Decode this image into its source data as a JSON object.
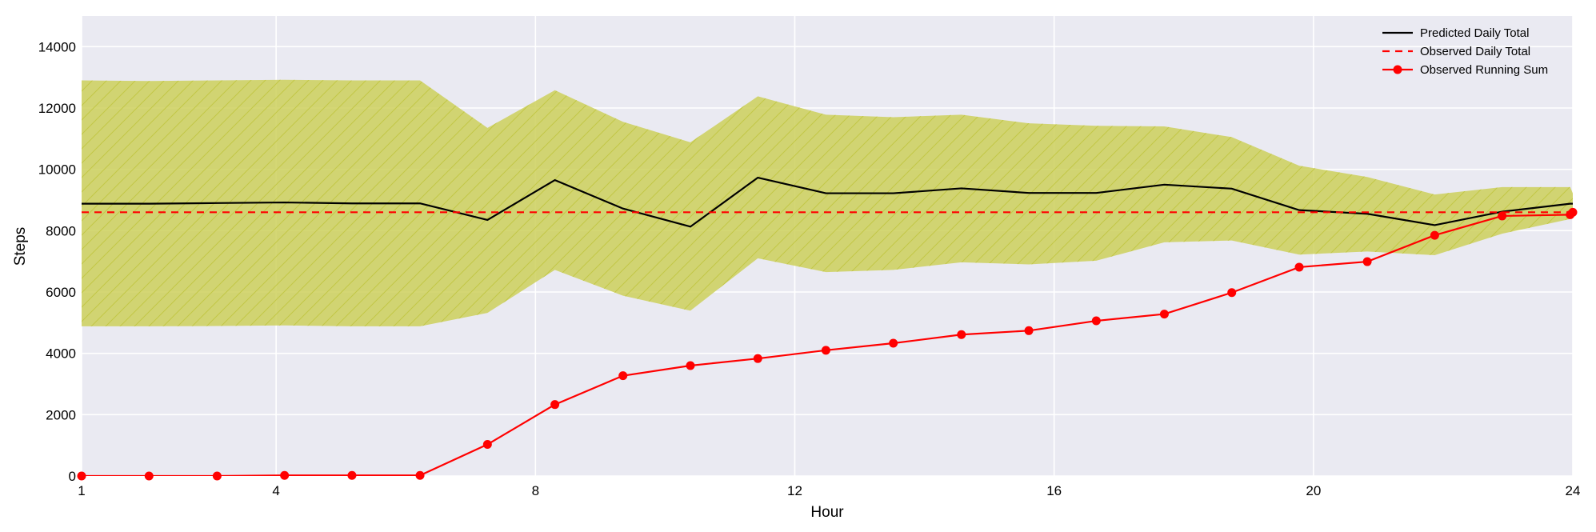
{
  "chart_data": {
    "type": "line",
    "xlabel": "Hour",
    "ylabel": "Steps",
    "xlim": [
      1,
      24
    ],
    "ylim": [
      0,
      15000
    ],
    "xticks": [
      1,
      4,
      8,
      12,
      16,
      20,
      24
    ],
    "yticks": [
      0,
      2000,
      4000,
      6000,
      8000,
      10000,
      12000,
      14000
    ],
    "grid": true,
    "legend_position": "top-right",
    "colors": {
      "background": "#eaeaf2",
      "grid": "#ffffff",
      "predicted": "#000000",
      "observed": "#ff0000",
      "band_fill": "#cdd05c",
      "band_hatch": "#c2c746"
    },
    "x": [
      1,
      2.04,
      3.09,
      4.13,
      5.17,
      6.22,
      7.26,
      8.3,
      9.35,
      10.39,
      11.43,
      12.48,
      13.52,
      14.57,
      15.61,
      16.65,
      17.7,
      18.74,
      19.78,
      20.83,
      21.87,
      22.91,
      23.96,
      24
    ],
    "band": {
      "upper": [
        12900,
        12880,
        12900,
        12920,
        12900,
        12900,
        11350,
        12580,
        11550,
        10880,
        12380,
        11780,
        11700,
        11780,
        11500,
        11420,
        11400,
        11050,
        10120,
        9750,
        9180,
        9420,
        9420,
        9220
      ],
      "lower": [
        4880,
        4880,
        4890,
        4910,
        4880,
        4880,
        5320,
        6720,
        5880,
        5390,
        7100,
        6650,
        6720,
        6970,
        6900,
        7020,
        7620,
        7680,
        7220,
        7320,
        7200,
        7900,
        8380,
        8420
      ]
    },
    "series": [
      {
        "name": "Predicted Daily Total",
        "style": "solid",
        "values": [
          8880,
          8880,
          8900,
          8920,
          8890,
          8890,
          8350,
          9650,
          8720,
          8130,
          9730,
          9220,
          9220,
          9380,
          9230,
          9230,
          9500,
          9370,
          8670,
          8550,
          8180,
          8620,
          8880,
          8880
        ]
      },
      {
        "name": "Observed Daily Total",
        "style": "dashed",
        "values": [
          8600,
          8600,
          8600,
          8600,
          8600,
          8600,
          8600,
          8600,
          8600,
          8600,
          8600,
          8600,
          8600,
          8600,
          8600,
          8600,
          8600,
          8600,
          8600,
          8600,
          8600,
          8600,
          8600,
          8600
        ]
      },
      {
        "name": "Observed Running Sum",
        "style": "solid-markers",
        "values": [
          0,
          0,
          0,
          20,
          20,
          20,
          1030,
          2330,
          3270,
          3600,
          3830,
          4100,
          4330,
          4610,
          4740,
          5060,
          5280,
          5980,
          6810,
          6990,
          7850,
          8480,
          8520,
          8600
        ]
      }
    ]
  }
}
